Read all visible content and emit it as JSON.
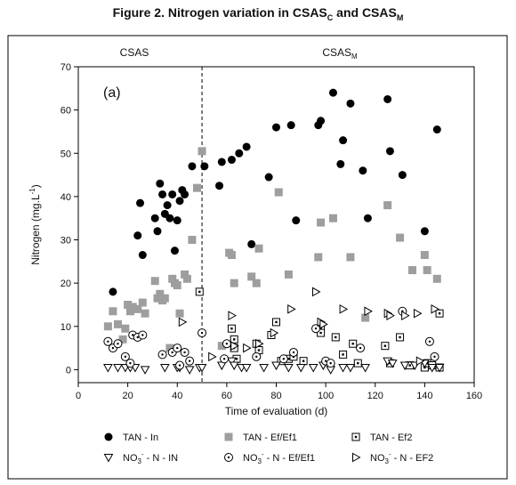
{
  "title": {
    "main": "Figure 2. Nitrogen variation in CSAS",
    "sub1": "C",
    "mid": " and CSAS",
    "sub2": "M"
  },
  "chart_data": {
    "type": "scatter",
    "panel_label": "(a)",
    "xlabel": "Time of evaluation (d)",
    "ylabel": "Nitrogen (mg.L",
    "ylabel_sup": "-1",
    "ylabel_end": ")",
    "xlim": [
      0,
      160
    ],
    "ylim": [
      -3,
      70
    ],
    "xticks": [
      0,
      20,
      40,
      60,
      80,
      100,
      120,
      140,
      160
    ],
    "yticks": [
      0,
      10,
      20,
      30,
      40,
      50,
      60,
      70
    ],
    "divider_x": 50,
    "region_left_label": "CSAS",
    "region_right_label": "CSAS",
    "region_right_sub": "M",
    "grid": false,
    "legend_position": "bottom",
    "series": [
      {
        "name": "TAN - In",
        "marker": "filled-circle",
        "color": "#000000",
        "points": [
          [
            14,
            18
          ],
          [
            24,
            31
          ],
          [
            25,
            38.5
          ],
          [
            26,
            26.5
          ],
          [
            31,
            35
          ],
          [
            32,
            32
          ],
          [
            33,
            43
          ],
          [
            34,
            40.5
          ],
          [
            35,
            36
          ],
          [
            36,
            38
          ],
          [
            37,
            35
          ],
          [
            38,
            40.5
          ],
          [
            39,
            27.5
          ],
          [
            40,
            34.5
          ],
          [
            41,
            39
          ],
          [
            42,
            41.5
          ],
          [
            43,
            40.5
          ],
          [
            46,
            47
          ],
          [
            51,
            47
          ],
          [
            57,
            42.5
          ],
          [
            58,
            48
          ],
          [
            62,
            48.5
          ],
          [
            65,
            50
          ],
          [
            68,
            51.5
          ],
          [
            70,
            29
          ],
          [
            77,
            44.5
          ],
          [
            80,
            56
          ],
          [
            86,
            56.5
          ],
          [
            88,
            34.5
          ],
          [
            97,
            56.5
          ],
          [
            98,
            57.5
          ],
          [
            103,
            64
          ],
          [
            106,
            47.5
          ],
          [
            107,
            53
          ],
          [
            110,
            61.5
          ],
          [
            115,
            46
          ],
          [
            117,
            35
          ],
          [
            125,
            62.5
          ],
          [
            126,
            50.5
          ],
          [
            131,
            45
          ],
          [
            140,
            32
          ],
          [
            145,
            55.5
          ]
        ]
      },
      {
        "name": "TAN - Ef/Ef1",
        "marker": "filled-square",
        "color": "#9e9e9e",
        "points": [
          [
            12,
            10
          ],
          [
            14,
            13.5
          ],
          [
            16,
            10.5
          ],
          [
            18,
            7
          ],
          [
            19,
            9.5
          ],
          [
            20,
            15
          ],
          [
            21,
            13.5
          ],
          [
            22,
            14.5
          ],
          [
            24,
            14
          ],
          [
            26,
            15.5
          ],
          [
            27,
            13
          ],
          [
            31,
            20.5
          ],
          [
            32,
            16.5
          ],
          [
            33,
            17.5
          ],
          [
            34,
            16
          ],
          [
            35,
            16.5
          ],
          [
            37,
            5
          ],
          [
            38,
            21
          ],
          [
            39,
            20
          ],
          [
            40,
            19.5
          ],
          [
            41,
            13
          ],
          [
            43,
            22
          ],
          [
            44,
            21
          ],
          [
            46,
            30
          ],
          [
            48,
            42
          ],
          [
            50,
            50.5
          ],
          [
            58,
            5.5
          ],
          [
            61,
            27
          ],
          [
            62,
            26.5
          ],
          [
            63,
            20
          ],
          [
            70,
            21.5
          ],
          [
            72,
            20
          ],
          [
            73,
            28
          ],
          [
            81,
            41
          ],
          [
            85,
            22
          ],
          [
            97,
            26
          ],
          [
            98,
            34
          ],
          [
            103,
            35
          ],
          [
            110,
            26
          ],
          [
            116,
            12
          ],
          [
            125,
            38
          ],
          [
            130,
            30.5
          ],
          [
            135,
            23
          ],
          [
            140,
            26.5
          ],
          [
            141,
            23
          ],
          [
            145,
            21
          ]
        ]
      },
      {
        "name": "TAN - Ef2",
        "marker": "boxed-dot",
        "color": "#000000",
        "points": [
          [
            49,
            18
          ],
          [
            62,
            9.5
          ],
          [
            63,
            7
          ],
          [
            63,
            5
          ],
          [
            64,
            2.5
          ],
          [
            72,
            6
          ],
          [
            73,
            4.5
          ],
          [
            78,
            8
          ],
          [
            80,
            11
          ],
          [
            82,
            2
          ],
          [
            85,
            2.5
          ],
          [
            87,
            3
          ],
          [
            91,
            2
          ],
          [
            98,
            9.5
          ],
          [
            98,
            8.5
          ],
          [
            104,
            7.5
          ],
          [
            107,
            3.5
          ],
          [
            111,
            6
          ],
          [
            113,
            1.5
          ],
          [
            124,
            5.5
          ],
          [
            126,
            1.5
          ],
          [
            130,
            7.5
          ],
          [
            134,
            1
          ],
          [
            140,
            0.5
          ],
          [
            141,
            1.5
          ],
          [
            143,
            1
          ],
          [
            146,
            0.5
          ],
          [
            146,
            13
          ]
        ]
      },
      {
        "name": "NO3 - N - IN",
        "marker": "down-triangle",
        "color": "#000000",
        "points": [
          [
            12,
            0.5
          ],
          [
            16,
            0.5
          ],
          [
            19,
            0.5
          ],
          [
            21,
            0.5
          ],
          [
            23,
            0.5
          ],
          [
            27,
            0
          ],
          [
            35,
            0.5
          ],
          [
            40,
            0.5
          ],
          [
            41,
            0.5
          ],
          [
            45,
            0
          ],
          [
            49,
            0.5
          ],
          [
            50,
            0.5
          ],
          [
            58,
            1
          ],
          [
            62,
            2
          ],
          [
            63,
            1
          ],
          [
            66,
            0.5
          ],
          [
            68,
            0.5
          ],
          [
            75,
            0.5
          ],
          [
            80,
            1
          ],
          [
            85,
            0.5
          ],
          [
            90,
            0.5
          ],
          [
            95,
            0.5
          ],
          [
            99,
            1
          ],
          [
            102,
            0
          ],
          [
            107,
            0.5
          ],
          [
            110,
            0.5
          ],
          [
            116,
            0.5
          ],
          [
            125,
            2
          ],
          [
            127,
            1.5
          ],
          [
            132,
            1
          ],
          [
            136,
            1
          ],
          [
            140,
            1.5
          ],
          [
            143,
            0.5
          ],
          [
            146,
            0.5
          ]
        ]
      },
      {
        "name": "NO3 - N - Ef/Ef1",
        "marker": "circle-dot",
        "color": "#000000",
        "points": [
          [
            12,
            6.5
          ],
          [
            14,
            5
          ],
          [
            16,
            6
          ],
          [
            19,
            3
          ],
          [
            21,
            1.5
          ],
          [
            22,
            8
          ],
          [
            24,
            7.5
          ],
          [
            26,
            8
          ],
          [
            34,
            3.5
          ],
          [
            38,
            4
          ],
          [
            40,
            5
          ],
          [
            41,
            1
          ],
          [
            43,
            4
          ],
          [
            45,
            2
          ],
          [
            50,
            8.5
          ],
          [
            59,
            2.5
          ],
          [
            60,
            6
          ],
          [
            72,
            3
          ],
          [
            83,
            2.5
          ],
          [
            87,
            4
          ],
          [
            96,
            9.5
          ],
          [
            100,
            2
          ],
          [
            102,
            1.5
          ],
          [
            114,
            5
          ],
          [
            131,
            13.5
          ],
          [
            142,
            6.5
          ],
          [
            144,
            3
          ]
        ]
      },
      {
        "name": "NO3 - N - EF2",
        "marker": "right-triangle",
        "color": "#000000",
        "points": [
          [
            42,
            11
          ],
          [
            54,
            3
          ],
          [
            62,
            12.5
          ],
          [
            63,
            5.5
          ],
          [
            68,
            5
          ],
          [
            73,
            6
          ],
          [
            79,
            8.5
          ],
          [
            86,
            14
          ],
          [
            96,
            18
          ],
          [
            98,
            11
          ],
          [
            99,
            10.5
          ],
          [
            107,
            14
          ],
          [
            117,
            13.5
          ],
          [
            125,
            13
          ],
          [
            126,
            12.5
          ],
          [
            132,
            12.5
          ],
          [
            137,
            13
          ],
          [
            138,
            2
          ],
          [
            144,
            14
          ]
        ]
      }
    ]
  },
  "legend_entries": [
    {
      "text": "TAN - In"
    },
    {
      "text": "TAN - Ef/Ef1"
    },
    {
      "text": "TAN - Ef2"
    },
    {
      "text_a": "NO",
      "sub": "3",
      "sup": "-",
      "text_b": " - N - IN"
    },
    {
      "text_a": "NO",
      "sub": "3",
      "sup": "-",
      "text_b": " - N - Ef/Ef1"
    },
    {
      "text_a": "NO",
      "sub": "3",
      "sup": "-",
      "text_b": " - N - EF2"
    }
  ]
}
